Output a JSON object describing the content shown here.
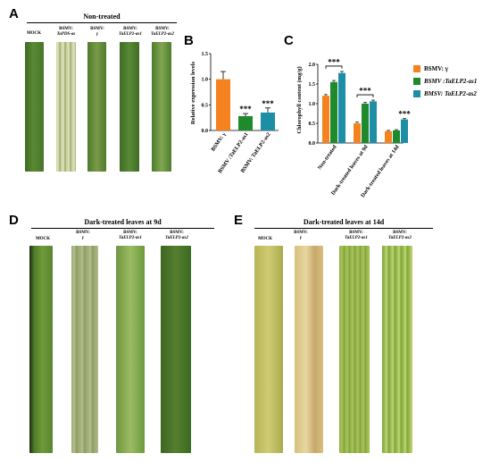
{
  "panels": {
    "A": {
      "letter": "A",
      "title": "Non-treated",
      "columns": [
        {
          "line1": "MOCK",
          "line2": ""
        },
        {
          "line1": "BSMV:",
          "line2": "TaPDS-as"
        },
        {
          "line1": "BSMV:",
          "line2": "γ"
        },
        {
          "line1": "BSMV:",
          "line2": "TaELP2-as1"
        },
        {
          "line1": "BSMV:",
          "line2": "TaELP2-as2"
        }
      ]
    },
    "B": {
      "letter": "B"
    },
    "C": {
      "letter": "C"
    },
    "D": {
      "letter": "D",
      "title": "Dark-treated leaves at 9d",
      "columns": [
        {
          "line1": "MOCK",
          "line2": ""
        },
        {
          "line1": "BSMV:",
          "line2": "γ"
        },
        {
          "line1": "BSMV:",
          "line2": "TaELP2-as1"
        },
        {
          "line1": "BSMV:",
          "line2": "TaELP2-as2"
        }
      ]
    },
    "E": {
      "letter": "E",
      "title": "Dark-treated leaves at 14d",
      "columns": [
        {
          "line1": "MOCK",
          "line2": ""
        },
        {
          "line1": "BSMV:",
          "line2": "γ"
        },
        {
          "line1": "BSMV:",
          "line2": "TaELP2-as1"
        },
        {
          "line1": "BSMV:",
          "line2": "TaELP2-as2"
        }
      ]
    }
  },
  "legend": [
    {
      "label": "BSMV: γ",
      "color": "#f5821f"
    },
    {
      "label": "BSMV :TaELP2-as1",
      "color": "#1e8a2c"
    },
    {
      "label": "BMSV: TaELP2-as2",
      "color": "#1c8fa6"
    }
  ],
  "chart_data": [
    {
      "type": "bar",
      "ylabel": "Relative expression levels",
      "ylim": [
        0,
        1.5
      ],
      "yticks": [
        "0.0",
        "0.5",
        "1.0",
        "1.5"
      ],
      "categories": [
        "BSMV: γ",
        "BSMV :TaELP2-as1",
        "BSMV: TaELP2-as2"
      ],
      "values": [
        1.0,
        0.28,
        0.35
      ],
      "errors": [
        0.15,
        0.05,
        0.09
      ],
      "colors": [
        "#f5821f",
        "#1e8a2c",
        "#1c8fa6"
      ],
      "annotations": [
        "",
        "***",
        "***"
      ]
    },
    {
      "type": "bar",
      "ylabel": "Chlorophyll content (mg/g)",
      "ylim": [
        0,
        2.0
      ],
      "yticks": [
        "0.0",
        "0.5",
        "1.0",
        "1.5",
        "2.0"
      ],
      "categories": [
        "Non-treated",
        "Dark-treated leaves at 9d",
        "Dark-treated leaves at 14d"
      ],
      "series": [
        {
          "name": "BSMV: γ",
          "color": "#f5821f",
          "values": [
            1.2,
            0.5,
            0.3
          ],
          "errors": [
            0.03,
            0.03,
            0.02
          ]
        },
        {
          "name": "BSMV :TaELP2-as1",
          "color": "#1e8a2c",
          "values": [
            1.55,
            1.0,
            0.32
          ],
          "errors": [
            0.04,
            0.03,
            0.02
          ]
        },
        {
          "name": "BMSV: TaELP2-as2",
          "color": "#1c8fa6",
          "values": [
            1.78,
            1.06,
            0.6
          ],
          "errors": [
            0.04,
            0.03,
            0.02
          ]
        }
      ],
      "annotations": [
        "***",
        "***",
        "***"
      ]
    }
  ]
}
